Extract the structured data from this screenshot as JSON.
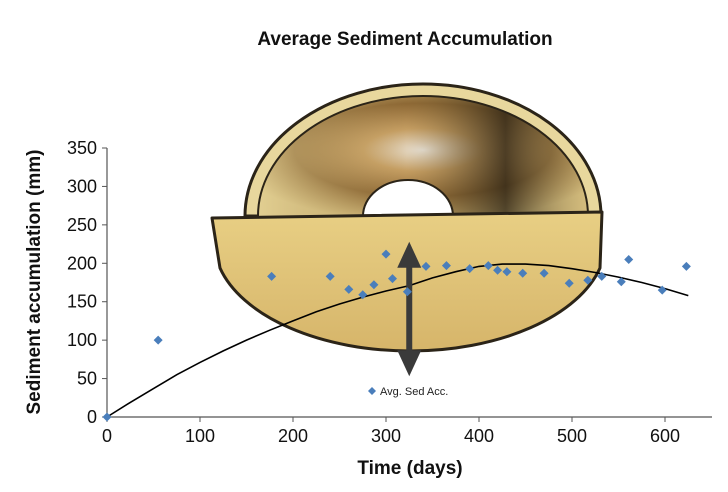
{
  "chart_data": {
    "type": "scatter",
    "title": "Average Sediment Accumulation",
    "xlabel": "Time (days)",
    "ylabel": "Sediment accumulation (mm)",
    "xlim": [
      0,
      650
    ],
    "ylim": [
      0,
      350
    ],
    "xticks": [
      0,
      100,
      200,
      300,
      400,
      500,
      600
    ],
    "yticks": [
      0,
      50,
      100,
      150,
      200,
      250,
      300,
      350
    ],
    "grid": false,
    "legend": "center",
    "colors": {
      "points": "#4a7ebb",
      "trend": "#000000",
      "arrow": "#3a3a3a"
    },
    "series": [
      {
        "name": "Avg. Sed Acc.",
        "marker": "diamond",
        "x": [
          0,
          55,
          177,
          240,
          260,
          275,
          287,
          300,
          307,
          323,
          343,
          365,
          390,
          410,
          420,
          430,
          447,
          470,
          497,
          517,
          532,
          553,
          561,
          597,
          623
        ],
        "y": [
          0,
          100,
          183,
          183,
          166,
          159,
          172,
          212,
          180,
          163,
          196,
          197,
          193,
          197,
          191,
          189,
          187,
          187,
          174,
          178,
          183,
          176,
          205,
          165,
          196
        ]
      }
    ],
    "trendline": {
      "type": "polynomial",
      "x": [
        0,
        25,
        50,
        75,
        100,
        125,
        150,
        175,
        200,
        225,
        250,
        275,
        300,
        325,
        350,
        375,
        400,
        425,
        450,
        475,
        500,
        525,
        550,
        575,
        600,
        625
      ],
      "y": [
        0,
        19,
        37,
        55,
        71,
        86,
        100,
        113,
        125,
        137,
        147,
        156,
        164,
        171,
        181,
        189,
        196,
        199,
        199,
        197,
        193,
        188,
        182,
        175,
        167,
        158
      ]
    },
    "annotation": {
      "type": "double-arrow",
      "x": 325,
      "y_from": 53,
      "y_to": 228
    }
  },
  "illustration": {
    "name": "sediment-trap-icon"
  }
}
